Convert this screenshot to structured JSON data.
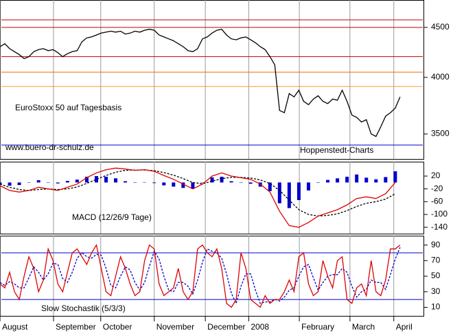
{
  "chart_data": [
    {
      "type": "line",
      "title": "EuroStoxx 50 auf Tagesbasis",
      "annotations": [
        "www.buero-dr-schulz.de",
        "Hoppenstedt-Charts"
      ],
      "log_scale": true,
      "ylim": [
        3300,
        4800
      ],
      "yticks": [
        3500,
        4000,
        4500
      ],
      "xlim": [
        0,
        88
      ],
      "color": "#000000",
      "x": [
        0,
        1,
        2,
        3,
        4,
        5,
        6,
        7,
        8,
        9,
        10,
        11,
        12,
        13,
        14,
        15,
        16,
        17,
        18,
        19,
        20,
        21,
        22,
        23,
        24,
        25,
        26,
        27,
        28,
        29,
        30,
        31,
        32,
        33,
        34,
        35,
        36,
        37,
        38,
        39,
        40,
        41,
        42,
        43,
        44,
        45,
        46,
        47,
        48,
        49,
        50,
        51,
        52,
        53,
        54,
        55,
        56,
        57,
        58,
        59,
        60,
        61,
        62,
        63,
        64,
        65,
        66,
        67,
        68,
        69,
        70,
        71,
        72,
        73,
        74,
        75,
        76,
        77,
        78,
        79,
        80,
        81,
        82,
        83
      ],
      "values": [
        4300,
        4330,
        4280,
        4250,
        4220,
        4180,
        4200,
        4250,
        4270,
        4280,
        4260,
        4270,
        4240,
        4200,
        4230,
        4250,
        4260,
        4350,
        4390,
        4400,
        4420,
        4440,
        4450,
        4460,
        4450,
        4460,
        4430,
        4440,
        4460,
        4450,
        4470,
        4480,
        4470,
        4420,
        4400,
        4380,
        4360,
        4330,
        4300,
        4260,
        4250,
        4280,
        4380,
        4400,
        4440,
        4470,
        4480,
        4420,
        4380,
        4370,
        4390,
        4400,
        4370,
        4340,
        4300,
        4270,
        4200,
        4120,
        3700,
        3680,
        3850,
        3820,
        3880,
        3780,
        3750,
        3800,
        3830,
        3780,
        3760,
        3800,
        3790,
        3880,
        3780,
        3660,
        3640,
        3600,
        3620,
        3500,
        3480,
        3560,
        3650,
        3680,
        3720,
        3820
      ],
      "hlines": [
        {
          "value": 4580,
          "color": "#c00000"
        },
        {
          "value": 4500,
          "color": "#c00000"
        },
        {
          "value": 4200,
          "color": "#c00000"
        },
        {
          "value": 4050,
          "color": "#ff6600"
        },
        {
          "value": 3915,
          "color": "#ff9933"
        },
        {
          "value": 3410,
          "color": "#0000cc"
        }
      ]
    },
    {
      "type": "line",
      "title": "MACD (12/26/9 Tage)",
      "ylim": [
        -160,
        65
      ],
      "yticks": [
        20,
        -20,
        -60,
        -100,
        -140
      ],
      "xlim": [
        0,
        88
      ],
      "x": [
        0,
        2,
        4,
        6,
        8,
        10,
        12,
        14,
        16,
        18,
        20,
        22,
        24,
        26,
        28,
        30,
        32,
        34,
        36,
        38,
        40,
        42,
        44,
        46,
        48,
        50,
        52,
        54,
        56,
        58,
        60,
        62,
        64,
        66,
        68,
        70,
        72,
        74,
        76,
        78,
        80,
        82
      ],
      "series": [
        {
          "kind": "bar",
          "color": "#0000cc",
          "values": [
            -5,
            -10,
            -8,
            0,
            7,
            0,
            -3,
            5,
            9,
            18,
            20,
            18,
            13,
            4,
            -1,
            1,
            -2,
            -9,
            -13,
            -17,
            -20,
            -1,
            16,
            18,
            4,
            -1,
            -4,
            -13,
            -27,
            -65,
            -80,
            -55,
            -25,
            0,
            8,
            13,
            18,
            25,
            15,
            10,
            17,
            35
          ]
        },
        {
          "color": "#000000",
          "dashed": true,
          "values": [
            -5,
            -15,
            -22,
            -25,
            -22,
            -20,
            -22,
            -20,
            -14,
            -3,
            10,
            22,
            32,
            38,
            39,
            39,
            37,
            31,
            23,
            12,
            0,
            -4,
            4,
            12,
            16,
            16,
            14,
            8,
            -3,
            -25,
            -55,
            -85,
            -100,
            -105,
            -103,
            -98,
            -88,
            -75,
            -65,
            -60,
            -52,
            -35
          ]
        },
        {
          "color": "#dd0000",
          "values": [
            -10,
            -25,
            -30,
            -25,
            -15,
            -20,
            -25,
            -15,
            -5,
            15,
            30,
            40,
            45,
            42,
            38,
            40,
            35,
            22,
            10,
            -5,
            -20,
            -5,
            20,
            30,
            20,
            15,
            10,
            -5,
            -30,
            -90,
            -135,
            -140,
            -125,
            -105,
            -95,
            -85,
            -70,
            -50,
            -45,
            -50,
            -35,
            0
          ]
        }
      ]
    },
    {
      "type": "line",
      "title": "Slow Stochastik (5/3/3)",
      "ylim": [
        -1,
        102
      ],
      "yticks": [
        90,
        70,
        50,
        30,
        10
      ],
      "xlim": [
        0,
        88
      ],
      "xticks": [
        {
          "value": 0,
          "label": "August"
        },
        {
          "value": 11.1,
          "label": "September"
        },
        {
          "value": 20.9,
          "label": "October"
        },
        {
          "value": 32,
          "label": "November"
        },
        {
          "value": 42.6,
          "label": "December"
        },
        {
          "value": 51.6,
          "label": "2008"
        },
        {
          "value": 62.1,
          "label": "February"
        },
        {
          "value": 72.6,
          "label": "March"
        },
        {
          "value": 81.7,
          "label": "April"
        }
      ],
      "hlines": [
        {
          "value": 80,
          "color": "#0000cc"
        },
        {
          "value": 20,
          "color": "#0000cc"
        }
      ],
      "x": [
        0,
        1,
        2,
        3,
        4,
        5,
        6,
        7,
        8,
        9,
        10,
        11,
        12,
        13,
        14,
        15,
        16,
        17,
        18,
        19,
        20,
        21,
        22,
        23,
        24,
        25,
        26,
        27,
        28,
        29,
        30,
        31,
        32,
        33,
        34,
        35,
        36,
        37,
        38,
        39,
        40,
        41,
        42,
        43,
        44,
        45,
        46,
        47,
        48,
        49,
        50,
        51,
        52,
        53,
        54,
        55,
        56,
        57,
        58,
        59,
        60,
        61,
        62,
        63,
        64,
        65,
        66,
        67,
        68,
        69,
        70,
        71,
        72,
        73,
        74,
        75,
        76,
        77,
        78,
        79,
        80,
        81,
        82,
        83
      ],
      "series": [
        {
          "color": "#0000cc",
          "dashed": true,
          "values": [
            42,
            38,
            43,
            40,
            35,
            35,
            48,
            62,
            55,
            45,
            53,
            67,
            65,
            47,
            42,
            55,
            73,
            80,
            75,
            73,
            78,
            77,
            60,
            38,
            35,
            50,
            62,
            58,
            42,
            32,
            42,
            63,
            82,
            72,
            50,
            32,
            30,
            42,
            42,
            37,
            27,
            45,
            68,
            85,
            82,
            80,
            73,
            53,
            28,
            15,
            37,
            53,
            53,
            32,
            15,
            17,
            17,
            20,
            18,
            23,
            32,
            35,
            50,
            62,
            65,
            48,
            32,
            42,
            50,
            52,
            52,
            60,
            55,
            37,
            23,
            30,
            33,
            45,
            42,
            42,
            33,
            52,
            72,
            87
          ]
        },
        {
          "color": "#dd0000",
          "values": [
            40,
            35,
            55,
            30,
            20,
            50,
            75,
            60,
            30,
            45,
            85,
            70,
            40,
            30,
            55,
            80,
            85,
            75,
            65,
            80,
            90,
            60,
            30,
            25,
            50,
            75,
            60,
            40,
            25,
            30,
            70,
            90,
            85,
            40,
            25,
            30,
            35,
            60,
            30,
            20,
            30,
            85,
            90,
            80,
            75,
            85,
            60,
            15,
            10,
            20,
            80,
            60,
            20,
            15,
            10,
            25,
            15,
            20,
            20,
            30,
            45,
            30,
            75,
            80,
            40,
            25,
            30,
            70,
            50,
            35,
            70,
            75,
            20,
            15,
            35,
            40,
            25,
            70,
            30,
            25,
            45,
            85,
            85,
            90
          ]
        }
      ]
    }
  ]
}
